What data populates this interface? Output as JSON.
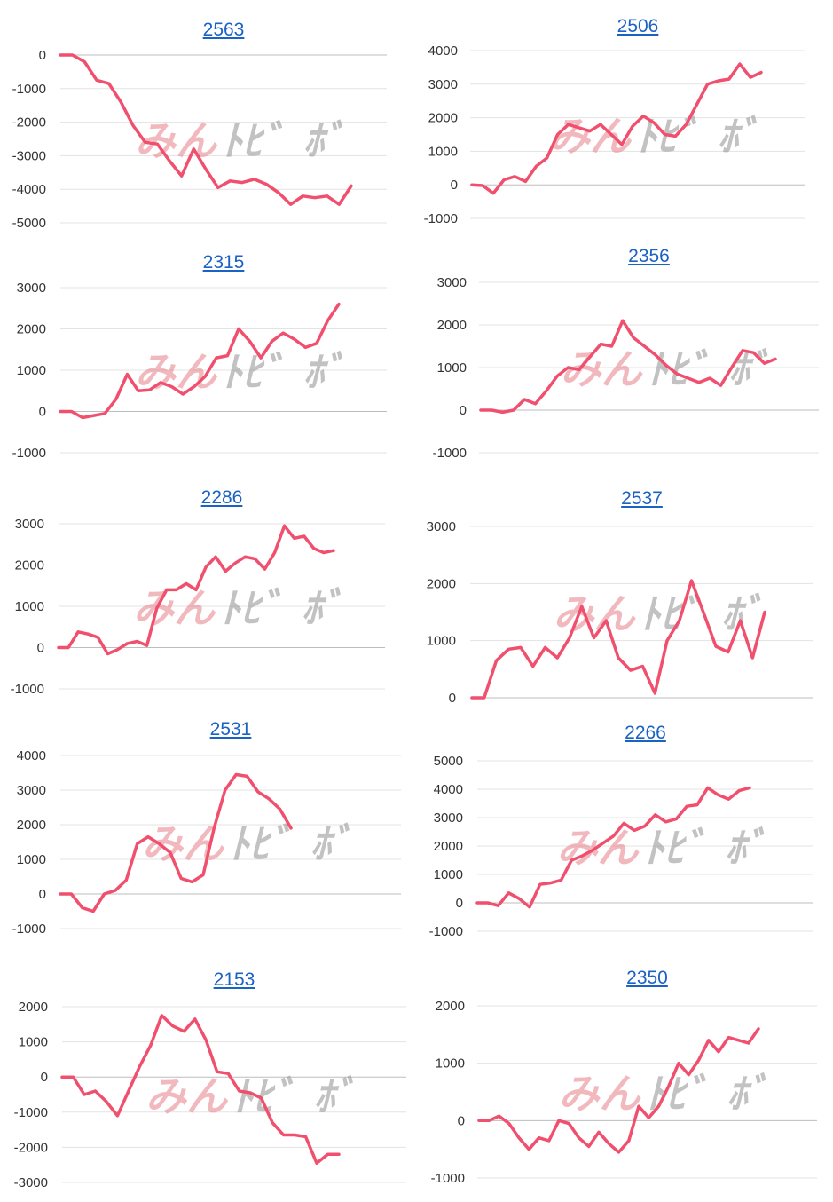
{
  "watermark": {
    "left_text": "みん",
    "right_text": "ﾄﾋ゛ﾎﾞ"
  },
  "colors": {
    "series": "#f0506e",
    "link": "#1a62c4"
  },
  "chart_data": [
    {
      "type": "line",
      "title": "2563",
      "yticks": [
        0,
        -1000,
        -2000,
        -3000,
        -4000,
        -5000
      ],
      "ylim": [
        -5000,
        0
      ],
      "values": [
        0,
        0,
        -200,
        -750,
        -850,
        -1400,
        -2100,
        -2600,
        -2650,
        -3150,
        -3600,
        -2800,
        -3400,
        -3950,
        -3750,
        -3800,
        -3700,
        -3850,
        -4100,
        -4450,
        -4200,
        -4250,
        -4200,
        -4450,
        -3900
      ]
    },
    {
      "type": "line",
      "title": "2506",
      "yticks": [
        4000,
        3000,
        2000,
        1000,
        0,
        -1000
      ],
      "ylim": [
        -1000,
        4000
      ],
      "values": [
        0,
        -20,
        -250,
        150,
        250,
        100,
        550,
        800,
        1500,
        1800,
        1700,
        1600,
        1800,
        1500,
        1200,
        1750,
        2050,
        1850,
        1500,
        1450,
        1800,
        2400,
        3000,
        3100,
        3150,
        3600,
        3200,
        3350
      ]
    },
    {
      "type": "line",
      "title": "2315",
      "yticks": [
        3000,
        2000,
        1000,
        0,
        -1000
      ],
      "ylim": [
        -1000,
        3000
      ],
      "values": [
        0,
        0,
        -150,
        -100,
        -50,
        300,
        900,
        500,
        520,
        700,
        600,
        420,
        600,
        850,
        1300,
        1350,
        2000,
        1700,
        1300,
        1700,
        1900,
        1750,
        1550,
        1650,
        2200,
        2600
      ]
    },
    {
      "type": "line",
      "title": "2356",
      "yticks": [
        3000,
        2000,
        1000,
        0,
        -1000
      ],
      "ylim": [
        -1000,
        3000
      ],
      "values": [
        0,
        0,
        -50,
        0,
        250,
        150,
        450,
        800,
        1000,
        950,
        1250,
        1550,
        1500,
        2100,
        1700,
        1500,
        1300,
        1050,
        850,
        750,
        650,
        750,
        580,
        1000,
        1400,
        1350,
        1100,
        1200
      ]
    },
    {
      "type": "line",
      "title": "2286",
      "yticks": [
        3000,
        2000,
        1000,
        0,
        -1000
      ],
      "ylim": [
        -1000,
        3000
      ],
      "values": [
        0,
        0,
        380,
        330,
        250,
        -150,
        -50,
        100,
        150,
        50,
        950,
        1400,
        1400,
        1550,
        1400,
        1950,
        2200,
        1850,
        2050,
        2200,
        2150,
        1900,
        2300,
        2950,
        2650,
        2700,
        2400,
        2300,
        2350
      ]
    },
    {
      "type": "line",
      "title": "2537",
      "yticks": [
        3000,
        2000,
        1000,
        0
      ],
      "ylim": [
        0,
        3000
      ],
      "values": [
        0,
        0,
        650,
        850,
        880,
        550,
        880,
        700,
        1050,
        1600,
        1050,
        1350,
        700,
        480,
        550,
        80,
        1000,
        1350,
        2050,
        1480,
        900,
        800,
        1350,
        700,
        1500
      ]
    },
    {
      "type": "line",
      "title": "2531",
      "yticks": [
        4000,
        3000,
        2000,
        1000,
        0,
        -1000
      ],
      "ylim": [
        -1000,
        4000
      ],
      "values": [
        0,
        0,
        -400,
        -500,
        0,
        100,
        400,
        1450,
        1650,
        1450,
        1200,
        450,
        350,
        550,
        1900,
        3000,
        3450,
        3400,
        2950,
        2750,
        2450,
        1900
      ]
    },
    {
      "type": "line",
      "title": "2266",
      "yticks": [
        5000,
        4000,
        3000,
        2000,
        1000,
        0,
        -1000
      ],
      "ylim": [
        -1000,
        5000
      ],
      "values": [
        0,
        0,
        -100,
        350,
        150,
        -150,
        650,
        700,
        800,
        1500,
        1650,
        1850,
        2100,
        2350,
        2800,
        2550,
        2700,
        3100,
        2850,
        2950,
        3400,
        3450,
        4050,
        3800,
        3650,
        3950,
        4050
      ]
    },
    {
      "type": "line",
      "title": "2153",
      "yticks": [
        2000,
        1000,
        0,
        -1000,
        -2000,
        -3000
      ],
      "ylim": [
        -3000,
        2000
      ],
      "values": [
        0,
        0,
        -500,
        -400,
        -700,
        -1100,
        -400,
        300,
        900,
        1750,
        1450,
        1300,
        1650,
        1050,
        150,
        100,
        -400,
        -450,
        -600,
        -1300,
        -1650,
        -1650,
        -1700,
        -2450,
        -2200,
        -2200
      ]
    },
    {
      "type": "line",
      "title": "2350",
      "yticks": [
        2000,
        1000,
        0,
        -1000
      ],
      "ylim": [
        -1000,
        2000
      ],
      "values": [
        0,
        0,
        80,
        -50,
        -300,
        -500,
        -300,
        -350,
        0,
        -50,
        -300,
        -450,
        -200,
        -400,
        -550,
        -350,
        250,
        50,
        250,
        600,
        1000,
        800,
        1050,
        1400,
        1200,
        1450,
        1400,
        1350,
        1600
      ]
    }
  ]
}
